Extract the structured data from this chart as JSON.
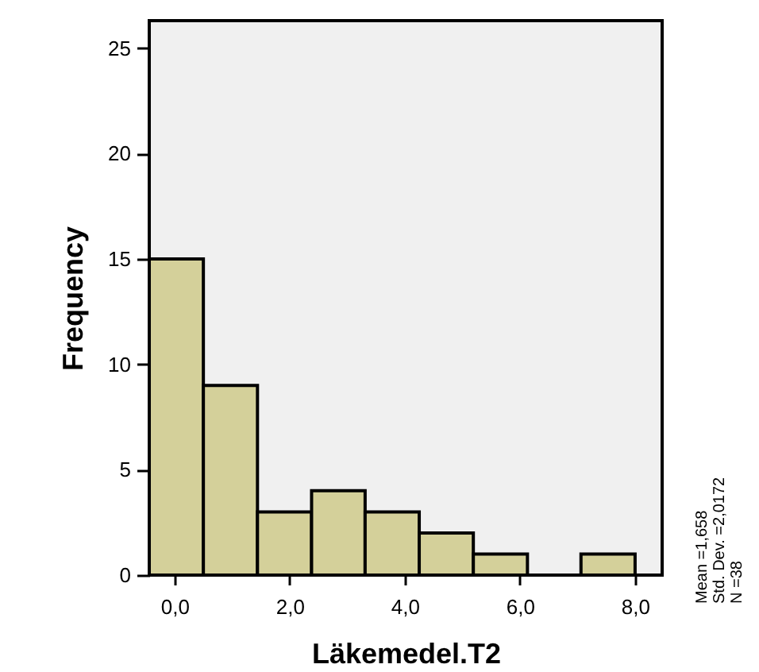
{
  "chart_data": {
    "type": "histogram",
    "xlabel": "Läkemedel.T2",
    "ylabel": "Frequency",
    "bins": [
      -0.44,
      0.5,
      1.44,
      2.38,
      3.31,
      4.25,
      5.19,
      6.13,
      7.06,
      8.0
    ],
    "values": [
      15,
      9,
      3,
      4,
      3,
      2,
      1,
      0,
      1
    ],
    "color": "#d4d09a",
    "xlim": [
      -0.44,
      8.47
    ],
    "xticks": [
      {
        "value": 0,
        "label": "0,0"
      },
      {
        "value": 2,
        "label": "2,0"
      },
      {
        "value": 4,
        "label": "4,0"
      },
      {
        "value": 6,
        "label": "6,0"
      },
      {
        "value": 8,
        "label": "8,0"
      }
    ],
    "ylim": [
      0,
      26.3
    ],
    "yticks": [
      0,
      5,
      10,
      15,
      20,
      25
    ],
    "grid": false,
    "annotations": [
      "Mean =1,658",
      "Std. Dev. =2,0172",
      "N =38"
    ]
  }
}
